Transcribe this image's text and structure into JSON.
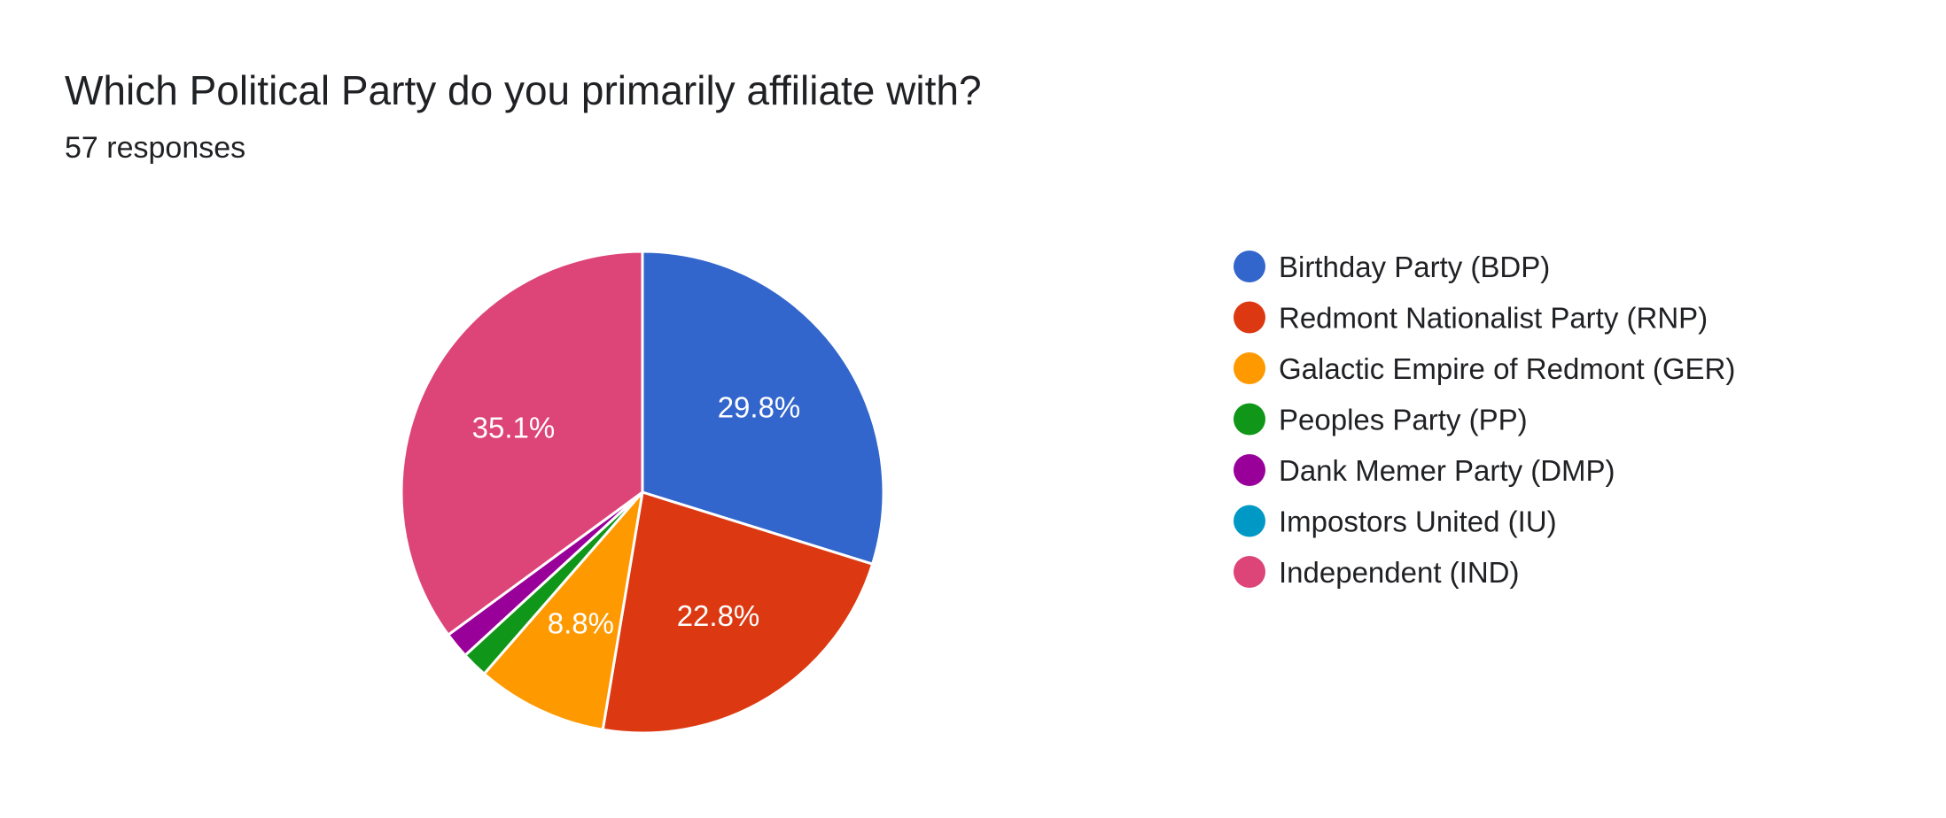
{
  "card": {
    "title": "Which Political Party do you primarily affiliate with?",
    "responses_label": "57 responses"
  },
  "chart_data": {
    "type": "pie",
    "total_responses": 57,
    "start_angle_deg": 90,
    "direction": "clockwise",
    "legend_position": "right",
    "slices": [
      {
        "label": "Birthday Party (BDP)",
        "count": 17,
        "percent_label": "29.8%",
        "color": "#3366cc"
      },
      {
        "label": "Redmont Nationalist Party (RNP)",
        "count": 13,
        "percent_label": "22.8%",
        "color": "#dc3912"
      },
      {
        "label": "Galactic Empire of Redmont (GER)",
        "count": 5,
        "percent_label": "8.8%",
        "color": "#ff9900"
      },
      {
        "label": "Peoples Party (PP)",
        "count": 1,
        "percent_label": "",
        "color": "#109618"
      },
      {
        "label": "Dank Memer Party (DMP)",
        "count": 1,
        "percent_label": "",
        "color": "#990099"
      },
      {
        "label": "Impostors United (IU)",
        "count": 0,
        "percent_label": "",
        "color": "#0099c6"
      },
      {
        "label": "Independent (IND)",
        "count": 20,
        "percent_label": "35.1%",
        "color": "#dd4477"
      }
    ]
  }
}
